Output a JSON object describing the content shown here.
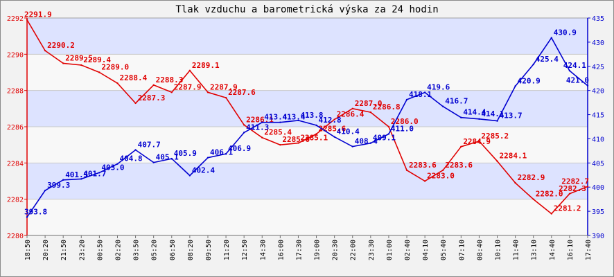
{
  "chart_data": {
    "type": "line",
    "title": "Tlak vzduchu a barometrická výska za 24 hodin",
    "x": [
      "18:50",
      "20:20",
      "21:50",
      "23:20",
      "00:50",
      "02:20",
      "03:50",
      "05:20",
      "06:50",
      "08:20",
      "09:50",
      "11:20",
      "12:50",
      "14:30",
      "16:00",
      "17:30",
      "19:00",
      "20:30",
      "22:00",
      "23:30",
      "01:00",
      "02:40",
      "04:10",
      "05:40",
      "07:10",
      "08:40",
      "10:10",
      "11:40",
      "13:10",
      "14:40",
      "16:10",
      "17:40"
    ],
    "series": [
      {
        "axis": "left",
        "color": "#e00000",
        "values": [
          2291.9,
          2290.2,
          2289.5,
          2289.4,
          2289.0,
          2288.4,
          2287.3,
          2288.3,
          2287.9,
          2289.1,
          2287.9,
          2287.6,
          2286.1,
          2285.4,
          2285.0,
          2285.1,
          2285.6,
          2286.4,
          2287.0,
          2286.8,
          2286.0,
          2283.6,
          2283.0,
          2283.6,
          2284.9,
          2285.2,
          2284.1,
          2282.9,
          2282.0,
          2281.2,
          2282.3,
          2282.7
        ],
        "labels": [
          "2291.9",
          "2290.2",
          "2289.5",
          "2289.4",
          "2289.0",
          "2288.4",
          "2287.3",
          "2288.3",
          "2287.9",
          "2289.1",
          "2287.9",
          "2287.6",
          "2286.1",
          "2285.4",
          "2285.0",
          "2285.1",
          "2285.6",
          "2286.4",
          "2287.0",
          "2286.8",
          "2286.0",
          "2283.6",
          "2283.0",
          "2283.6",
          "2284.9",
          "2285.2",
          "2284.1",
          "2282.9",
          "2282.0",
          "2281.2",
          "2282.3",
          "2282.7"
        ]
      },
      {
        "axis": "right",
        "color": "#0000d0",
        "values": [
          393.8,
          399.3,
          401.5,
          401.7,
          403.0,
          404.8,
          407.7,
          405.1,
          405.9,
          402.4,
          406.1,
          406.9,
          411.3,
          413.4,
          413.4,
          413.8,
          412.8,
          410.4,
          408.4,
          409.1,
          411.0,
          418.1,
          419.6,
          416.7,
          414.4,
          414.1,
          413.7,
          420.9,
          425.4,
          430.9,
          424.1,
          421.0
        ],
        "labels": [
          "393.8",
          "399.3",
          "401.5",
          "401.7",
          "403.0",
          "404.8",
          "407.7",
          "405.1",
          "405.9",
          "402.4",
          "406.1",
          "406.9",
          "411.3",
          "413.4",
          "413.4",
          "413.8",
          "412.8",
          "410.4",
          "408.4",
          "409.1",
          "411.0",
          "418.1",
          "419.6",
          "416.7",
          "414.4",
          "414.1",
          "413.7",
          "420.9",
          "425.4",
          "430.9",
          "424.1",
          "421.0"
        ]
      }
    ],
    "yleft": {
      "range": [
        2280,
        2292
      ],
      "ticks": [
        "2280",
        "2282",
        "2284",
        "2286",
        "2288",
        "2290",
        "2292"
      ],
      "color": "#e00000"
    },
    "yright": {
      "range": [
        390,
        435
      ],
      "ticks": [
        "390",
        "395",
        "400",
        "405",
        "410",
        "415",
        "420",
        "425",
        "430",
        "435"
      ],
      "color": "#0000d0"
    },
    "grid": true,
    "colors": {
      "band": "#dde3ff",
      "band_alt": "#f8f8f8",
      "background": "#f2f2f2"
    }
  }
}
